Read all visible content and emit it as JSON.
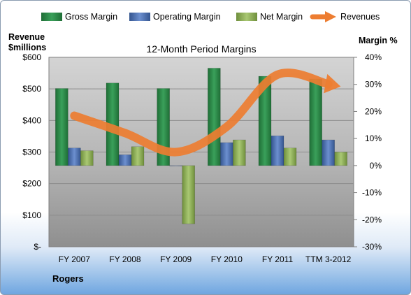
{
  "chart_data": {
    "type": "bar",
    "title": "12-Month Period Margins",
    "company": "Rogers",
    "left_axis": {
      "label_line1": "Revenue",
      "label_line2": "$millions",
      "ticks": [
        "$600",
        "$500",
        "$400",
        "$300",
        "$200",
        "$100",
        "$-"
      ],
      "range": [
        0,
        600
      ]
    },
    "right_axis": {
      "label": "Margin %",
      "ticks": [
        "40%",
        "30%",
        "20%",
        "10%",
        "0%",
        "-10%",
        "-20%",
        "-30%"
      ],
      "range": [
        -30,
        40
      ]
    },
    "categories": [
      "FY 2007",
      "FY 2008",
      "FY 2009",
      "FY 2010",
      "FY 2011",
      "TTM 3-2012"
    ],
    "series": [
      {
        "name": "Gross Margin",
        "axis": "right",
        "color": "#2e8b4a",
        "values": [
          28.5,
          30.5,
          28.5,
          36,
          33,
          32
        ]
      },
      {
        "name": "Operating Margin",
        "axis": "right",
        "color": "#4f74b8",
        "values": [
          6.5,
          4,
          0,
          8.5,
          11,
          9.5
        ]
      },
      {
        "name": "Net Margin",
        "axis": "right",
        "color": "#8fb15a",
        "values": [
          5.5,
          7,
          -21.5,
          9.5,
          6.5,
          5
        ]
      },
      {
        "name": "Revenues",
        "axis": "left",
        "color": "#ed7d31",
        "values": [
          415,
          360,
          300,
          380,
          545,
          515
        ]
      }
    ],
    "legend_position": "top",
    "grid": true
  }
}
